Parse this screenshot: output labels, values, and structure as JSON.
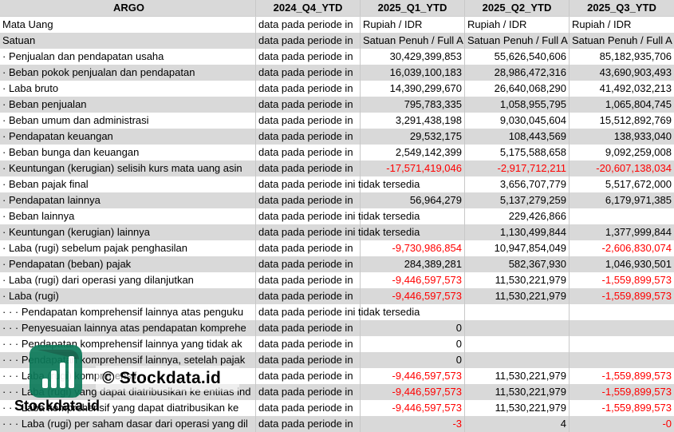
{
  "header": {
    "col0": "ARGO",
    "col1": "2024_Q4_YTD",
    "col2": "2025_Q1_YTD",
    "col3": "2025_Q2_YTD",
    "col4": "2025_Q3_YTD"
  },
  "rows": [
    {
      "label": "Mata Uang",
      "c1": "data pada periode in",
      "c2": "Rupiah / IDR",
      "c3": "Rupiah / IDR",
      "c4": "Rupiah / IDR"
    },
    {
      "label": "Satuan",
      "c1": "data pada periode in",
      "c2": "Satuan Penuh / Full A",
      "c3": "Satuan Penuh / Full A",
      "c4": "Satuan Penuh / Full A"
    },
    {
      "label": "· Penjualan dan pendapatan usaha",
      "c1": "data pada periode in",
      "c2": "30,429,399,853",
      "c3": "55,626,540,606",
      "c4": "85,182,935,706"
    },
    {
      "label": "· Beban pokok penjualan dan pendapatan",
      "c1": "data pada periode in",
      "c2": "16,039,100,183",
      "c3": "28,986,472,316",
      "c4": "43,690,903,493"
    },
    {
      "label": "· Laba bruto",
      "c1": "data pada periode in",
      "c2": "14,390,299,670",
      "c3": "26,640,068,290",
      "c4": "41,492,032,213"
    },
    {
      "label": "· Beban penjualan",
      "c1": "data pada periode in",
      "c2": "795,783,335",
      "c3": "1,058,955,795",
      "c4": "1,065,804,745"
    },
    {
      "label": "· Beban umum dan administrasi",
      "c1": "data pada periode in",
      "c2": "3,291,438,198",
      "c3": "9,030,045,604",
      "c4": "15,512,892,769"
    },
    {
      "label": "· Pendapatan keuangan",
      "c1": "data pada periode in",
      "c2": "29,532,175",
      "c3": "108,443,569",
      "c4": "138,933,040"
    },
    {
      "label": "· Beban bunga dan keuangan",
      "c1": "data pada periode in",
      "c2": "2,549,142,399",
      "c3": "5,175,588,658",
      "c4": "9,092,259,008"
    },
    {
      "label": "· Keuntungan (kerugian) selisih kurs mata uang asin",
      "c1": "data pada periode in",
      "c2": "-17,571,419,046",
      "c3": "-2,917,712,211",
      "c4": "-20,607,138,034"
    },
    {
      "label": "· Beban pajak final",
      "c1": "data pada periode ini tidak tersedia",
      "c2": "",
      "c3": "3,656,707,779",
      "c4": "5,517,672,000"
    },
    {
      "label": "· Pendapatan lainnya",
      "c1": "data pada periode in",
      "c2": "56,964,279",
      "c3": "5,137,279,259",
      "c4": "6,179,971,385"
    },
    {
      "label": "· Beban lainnya",
      "c1": "data pada periode ini tidak tersedia",
      "c2": "",
      "c3": "229,426,866",
      "c4": ""
    },
    {
      "label": "· Keuntungan (kerugian) lainnya",
      "c1": "data pada periode ini tidak tersedia",
      "c2": "",
      "c3": "1,130,499,844",
      "c4": "1,377,999,844"
    },
    {
      "label": "· Laba (rugi) sebelum pajak penghasilan",
      "c1": "data pada periode in",
      "c2": "-9,730,986,854",
      "c3": "10,947,854,049",
      "c4": "-2,606,830,074"
    },
    {
      "label": "· Pendapatan (beban) pajak",
      "c1": "data pada periode in",
      "c2": "284,389,281",
      "c3": "582,367,930",
      "c4": "1,046,930,501"
    },
    {
      "label": "· Laba (rugi) dari operasi yang dilanjutkan",
      "c1": "data pada periode in",
      "c2": "-9,446,597,573",
      "c3": "11,530,221,979",
      "c4": "-1,559,899,573"
    },
    {
      "label": "· Laba (rugi)",
      "c1": "data pada periode in",
      "c2": "-9,446,597,573",
      "c3": "11,530,221,979",
      "c4": "-1,559,899,573"
    },
    {
      "label": "· · · Pendapatan komprehensif lainnya atas penguku",
      "c1": "data pada periode ini tidak tersedia",
      "c2": "",
      "c3": "",
      "c4": ""
    },
    {
      "label": "· · · Penyesuaian lainnya atas pendapatan komprehe",
      "c1": "data pada periode in",
      "c2": "0",
      "c3": "",
      "c4": ""
    },
    {
      "label": "· · · Pendapatan komprehensif lainnya yang tidak ak",
      "c1": "data pada periode in",
      "c2": "0",
      "c3": "",
      "c4": ""
    },
    {
      "label": "· · · Pendapatan komprehensif lainnya, setelah pajak",
      "c1": "data pada periode in",
      "c2": "0",
      "c3": "",
      "c4": ""
    },
    {
      "label": "· · · Laba (rugi) komprehensif",
      "c1": "data pada periode in",
      "c2": "-9,446,597,573",
      "c3": "11,530,221,979",
      "c4": "-1,559,899,573"
    },
    {
      "label": "· · · Laba (rugi) yang dapat diatribusikan ke entitas ind",
      "c1": "data pada periode in",
      "c2": "-9,446,597,573",
      "c3": "11,530,221,979",
      "c4": "-1,559,899,573"
    },
    {
      "label": "· · · Laba komprehensif yang dapat diatribusikan ke",
      "c1": "data pada periode in",
      "c2": "-9,446,597,573",
      "c3": "11,530,221,979",
      "c4": "-1,559,899,573"
    },
    {
      "label": "· · · Laba (rugi) per saham dasar dari operasi yang dil",
      "c1": "data pada periode in",
      "c2": "-3",
      "c3": "4",
      "c4": "-0"
    }
  ],
  "watermark": {
    "main": "© Stockdata.id",
    "sub": "Stockdata.id",
    "logo_icon": "bar-chart-logo-icon",
    "logo_color": "#0d7a5a"
  },
  "colors": {
    "negative": "#ff0000",
    "stripe": "#d9d9d9"
  }
}
